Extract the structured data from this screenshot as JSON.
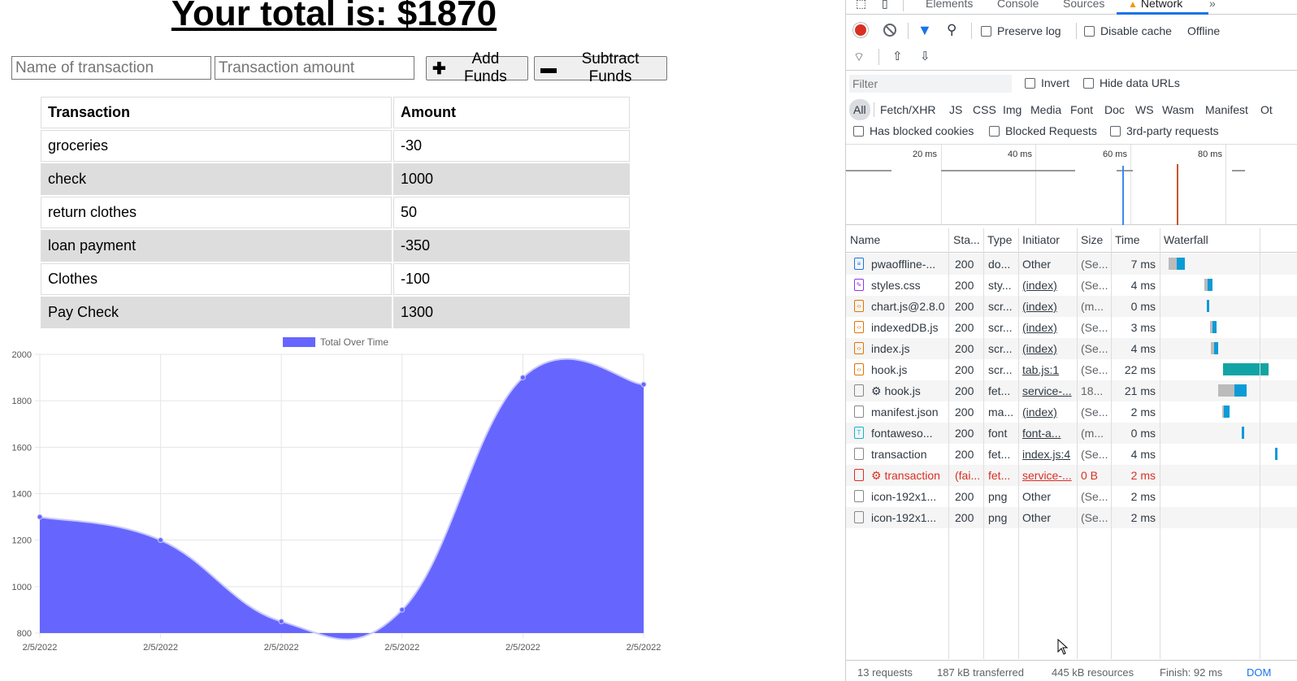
{
  "app": {
    "title": "Your total is: $1870",
    "name_placeholder": "Name of transaction",
    "amount_placeholder": "Transaction amount",
    "add_label": "Add Funds",
    "subtract_label": "Subtract Funds",
    "table": {
      "headers": [
        "Transaction",
        "Amount"
      ],
      "rows": [
        [
          "groceries",
          "-30"
        ],
        [
          "check",
          "1000"
        ],
        [
          "return clothes",
          "50"
        ],
        [
          "loan payment",
          "-350"
        ],
        [
          "Clothes",
          "-100"
        ],
        [
          "Pay Check",
          "1300"
        ]
      ]
    }
  },
  "chart_data": {
    "type": "area",
    "legend": "Total Over Time",
    "legend_position": "top",
    "categories": [
      "2/5/2022",
      "2/5/2022",
      "2/5/2022",
      "2/5/2022",
      "2/5/2022",
      "2/5/2022"
    ],
    "series": [
      {
        "name": "Total Over Time",
        "values": [
          1300,
          1200,
          850,
          900,
          1900,
          1870
        ],
        "color": "#6666ff"
      }
    ],
    "ylim": [
      800,
      2000
    ],
    "yticks": [
      800,
      1000,
      1200,
      1400,
      1600,
      1800,
      2000
    ],
    "grid": true
  },
  "devtools": {
    "tabs": [
      "Elements",
      "Console",
      "Sources",
      "Network"
    ],
    "active_tab": "Network",
    "more_tabs": "»",
    "toolbar": {
      "preserve_log": "Preserve log",
      "disable_cache": "Disable cache",
      "throttle": "Offline"
    },
    "filter_placeholder": "Filter",
    "invert": "Invert",
    "hide_data_urls": "Hide data URLs",
    "types": [
      "All",
      "Fetch/XHR",
      "JS",
      "CSS",
      "Img",
      "Media",
      "Font",
      "Doc",
      "WS",
      "Wasm",
      "Manifest",
      "Ot"
    ],
    "has_blocked_cookies": "Has blocked cookies",
    "blocked_requests": "Blocked Requests",
    "third_party": "3rd-party requests",
    "overview_labels": [
      "20 ms",
      "40 ms",
      "60 ms",
      "80 ms"
    ],
    "columns": [
      "Name",
      "Sta...",
      "Type",
      "Initiator",
      "Size",
      "Time",
      "Waterfall"
    ],
    "requests": [
      {
        "name": "pwaoffline-...",
        "status": "200",
        "type": "do...",
        "initiator": "Other",
        "size": "(Se...",
        "time": "7 ms",
        "icon": "doc-icon",
        "failed": false
      },
      {
        "name": "styles.css",
        "status": "200",
        "type": "sty...",
        "initiator": "(index)",
        "size": "(Se...",
        "time": "4 ms",
        "icon": "css-icon",
        "failed": false
      },
      {
        "name": "chart.js@2.8.0",
        "status": "200",
        "type": "scr...",
        "initiator": "(index)",
        "size": "(m...",
        "time": "0 ms",
        "icon": "script-icon",
        "failed": false
      },
      {
        "name": "indexedDB.js",
        "status": "200",
        "type": "scr...",
        "initiator": "(index)",
        "size": "(Se...",
        "time": "3 ms",
        "icon": "script-icon",
        "failed": false
      },
      {
        "name": "index.js",
        "status": "200",
        "type": "scr...",
        "initiator": "(index)",
        "size": "(Se...",
        "time": "4 ms",
        "icon": "script-icon",
        "failed": false
      },
      {
        "name": "hook.js",
        "status": "200",
        "type": "scr...",
        "initiator": "tab.js:1",
        "size": "(Se...",
        "time": "22 ms",
        "icon": "script-icon",
        "failed": false
      },
      {
        "name": "⚙ hook.js",
        "status": "200",
        "type": "fet...",
        "initiator": "service-...",
        "size": "18...",
        "time": "21 ms",
        "icon": "fetch-icon",
        "failed": false
      },
      {
        "name": "manifest.json",
        "status": "200",
        "type": "ma...",
        "initiator": "(index)",
        "size": "(Se...",
        "time": "2 ms",
        "icon": "fetch-icon",
        "failed": false
      },
      {
        "name": "fontaweso...",
        "status": "200",
        "type": "font",
        "initiator": "font-a...",
        "size": "(m...",
        "time": "0 ms",
        "icon": "font-icon",
        "failed": false
      },
      {
        "name": "transaction",
        "status": "200",
        "type": "fet...",
        "initiator": "index.js:4",
        "size": "(Se...",
        "time": "4 ms",
        "icon": "fetch-icon",
        "failed": false
      },
      {
        "name": "⚙ transaction",
        "status": "(fai...",
        "type": "fet...",
        "initiator": "service-...",
        "size": "0 B",
        "time": "2 ms",
        "icon": "fetch-icon",
        "failed": true
      },
      {
        "name": "icon-192x1...",
        "status": "200",
        "type": "png",
        "initiator": "Other",
        "size": "(Se...",
        "time": "2 ms",
        "icon": "image-icon",
        "failed": false
      },
      {
        "name": "icon-192x1...",
        "status": "200",
        "type": "png",
        "initiator": "Other",
        "size": "(Se...",
        "time": "2 ms",
        "icon": "image-icon",
        "failed": false
      }
    ],
    "status_bar": [
      "13 requests",
      "187 kB transferred",
      "445 kB resources",
      "Finish: 92 ms",
      "DOM"
    ]
  }
}
